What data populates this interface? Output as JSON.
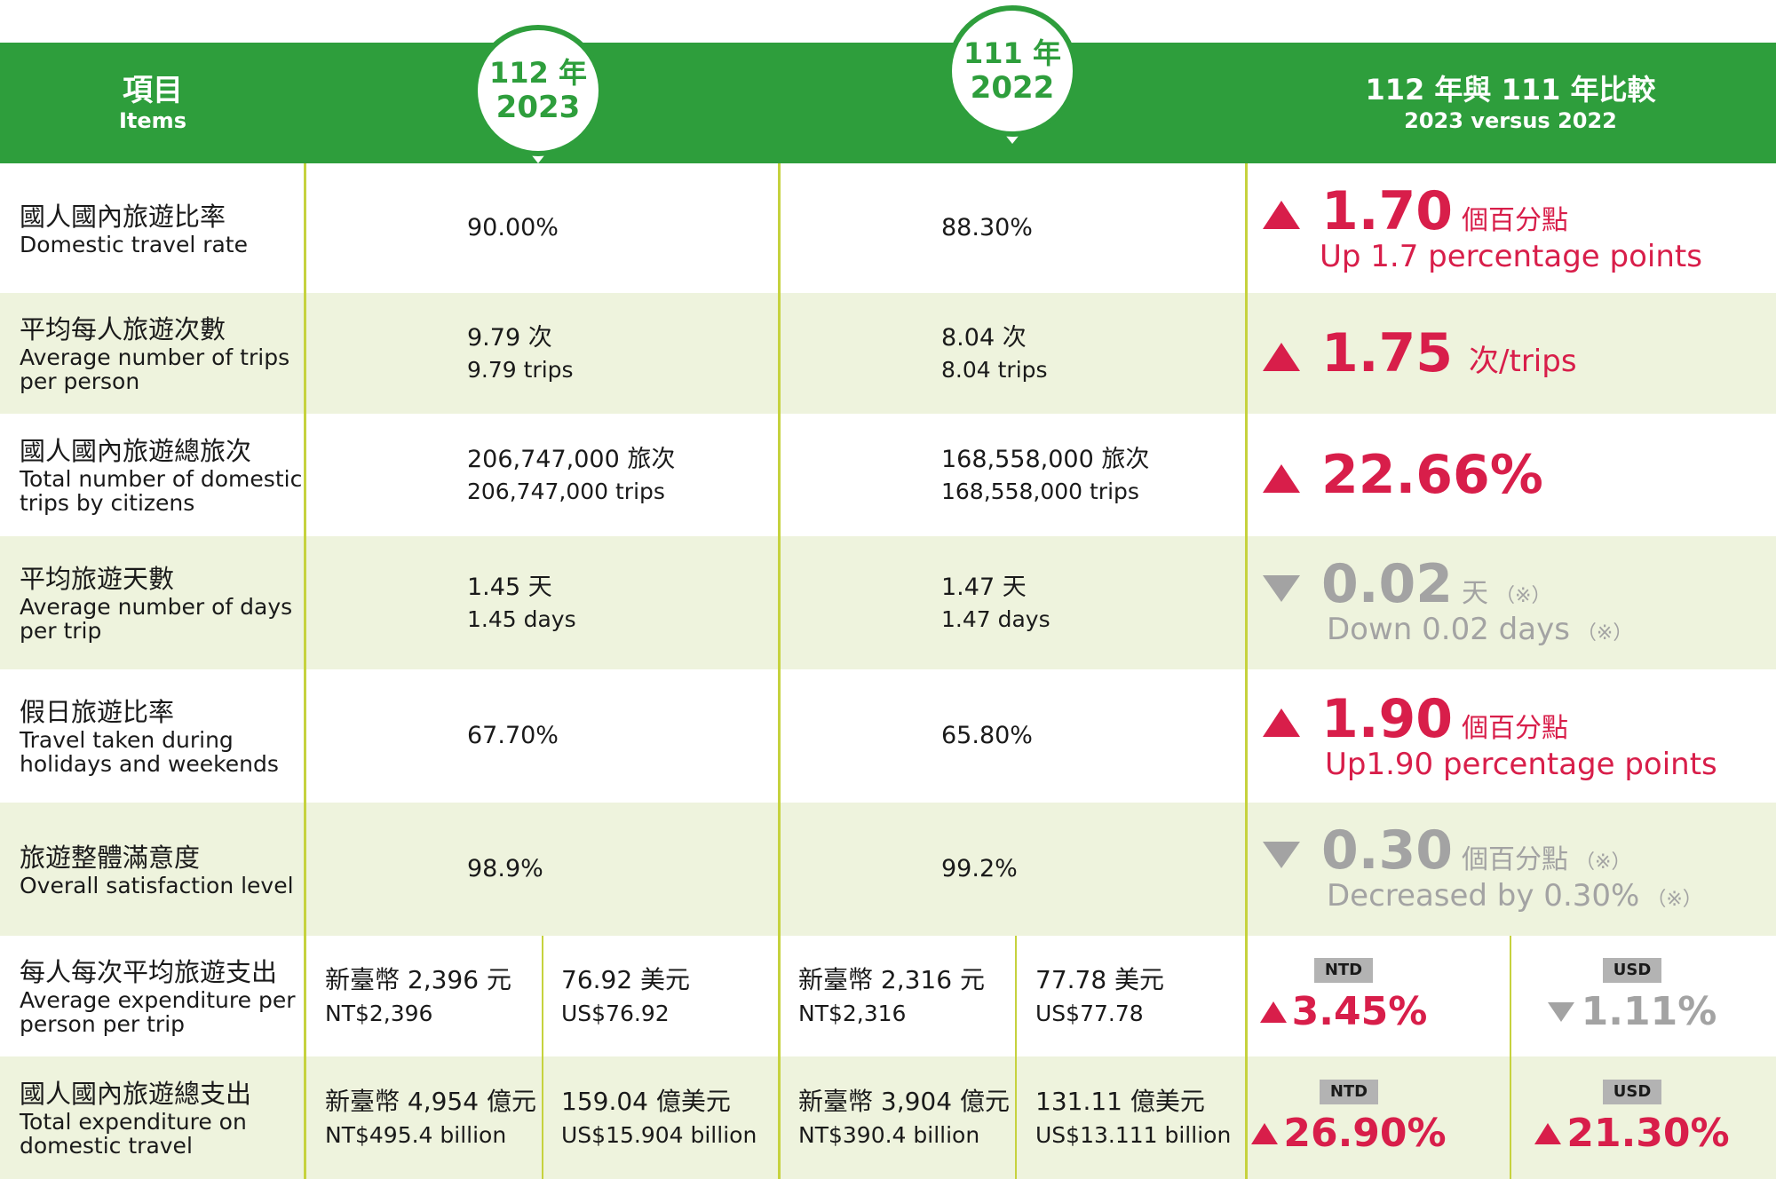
{
  "header": {
    "items_zh": "項目",
    "items_en": "Items",
    "year1_line1": "112 年",
    "year1_line2": "2023",
    "year2_line1": "111 年",
    "year2_line2": "2022",
    "compare_zh": "112 年與 111 年比較",
    "compare_en": "2023 versus 2022"
  },
  "rows": [
    {
      "item_zh": "國人國內旅遊比率",
      "item_en": "Domestic travel rate",
      "v2023": "90.00%",
      "v2022": "88.30%",
      "direction": "up",
      "change": "1.70",
      "change_unit": "個百分點",
      "change_sub": "Up 1.7 percentage points"
    },
    {
      "item_zh": "平均每人旅遊次數",
      "item_en1": "Average number of trips",
      "item_en2": "per person",
      "v2023_zh": "9.79 次",
      "v2023_en": "9.79 trips",
      "v2022_zh": "8.04 次",
      "v2022_en": "8.04 trips",
      "direction": "up",
      "change": "1.75",
      "change_unit": "次/trips"
    },
    {
      "item_zh": "國人國內旅遊總旅次",
      "item_en1": "Total number of domestic",
      "item_en2": "trips by citizens",
      "v2023_zh": "206,747,000 旅次",
      "v2023_en": "206,747,000 trips",
      "v2022_zh": "168,558,000 旅次",
      "v2022_en": "168,558,000 trips",
      "direction": "up",
      "change": "22.66%"
    },
    {
      "item_zh": "平均旅遊天數",
      "item_en1": "Average number of days",
      "item_en2": "per trip",
      "v2023_zh": "1.45 天",
      "v2023_en": "1.45 days",
      "v2022_zh": "1.47 天",
      "v2022_en": "1.47 days",
      "direction": "down",
      "change": "0.02",
      "change_unit": "天",
      "note": "（※）",
      "change_sub": "Down 0.02 days"
    },
    {
      "item_zh": "假日旅遊比率",
      "item_en1": "Travel taken during",
      "item_en2": "holidays and weekends",
      "v2023": "67.70%",
      "v2022": "65.80%",
      "direction": "up",
      "change": "1.90",
      "change_unit": "個百分點",
      "change_sub": "Up1.90 percentage points"
    },
    {
      "item_zh": "旅遊整體滿意度",
      "item_en": "Overall satisfaction level",
      "v2023": "98.9%",
      "v2022": "99.2%",
      "direction": "down",
      "change": "0.30",
      "change_unit": "個百分點",
      "note": "（※）",
      "change_sub": "Decreased by 0.30%"
    },
    {
      "item_zh": "每人每次平均旅遊支出",
      "item_en1": "Average expenditure per",
      "item_en2": "person per trip",
      "v2023_ntd_zh": "新臺幣 2,396 元",
      "v2023_ntd_en": "NT$2,396",
      "v2023_usd_zh": "76.92 美元",
      "v2023_usd_en": "US$76.92",
      "v2022_ntd_zh": "新臺幣 2,316 元",
      "v2022_ntd_en": "NT$2,316",
      "v2022_usd_zh": "77.78 美元",
      "v2022_usd_en": "US$77.78",
      "ntd_tag": "NTD",
      "ntd_direction": "up",
      "ntd_change": "3.45%",
      "usd_tag": "USD",
      "usd_direction": "down",
      "usd_change": "1.11%"
    },
    {
      "item_zh": "國人國內旅遊總支出",
      "item_en1": "Total expenditure on",
      "item_en2": "domestic travel",
      "v2023_ntd_zh": "新臺幣 4,954 億元",
      "v2023_ntd_en": "NT$495.4 billion",
      "v2023_usd_zh": "159.04 億美元",
      "v2023_usd_en": "US$15.904 billion",
      "v2022_ntd_zh": "新臺幣 3,904 億元",
      "v2022_ntd_en": "NT$390.4 billion",
      "v2022_usd_zh": "131.11 億美元",
      "v2022_usd_en": "US$13.111 billion",
      "ntd_tag": "NTD",
      "ntd_direction": "up",
      "ntd_change": "26.90%",
      "usd_tag": "USD",
      "usd_direction": "up",
      "usd_change": "21.30%"
    }
  ],
  "colors": {
    "header_green": "#2e9e3c",
    "alt_row": "#eef3dd",
    "divider": "#c6d23e",
    "increase": "#d81e4a",
    "decrease": "#a3a3a3"
  }
}
